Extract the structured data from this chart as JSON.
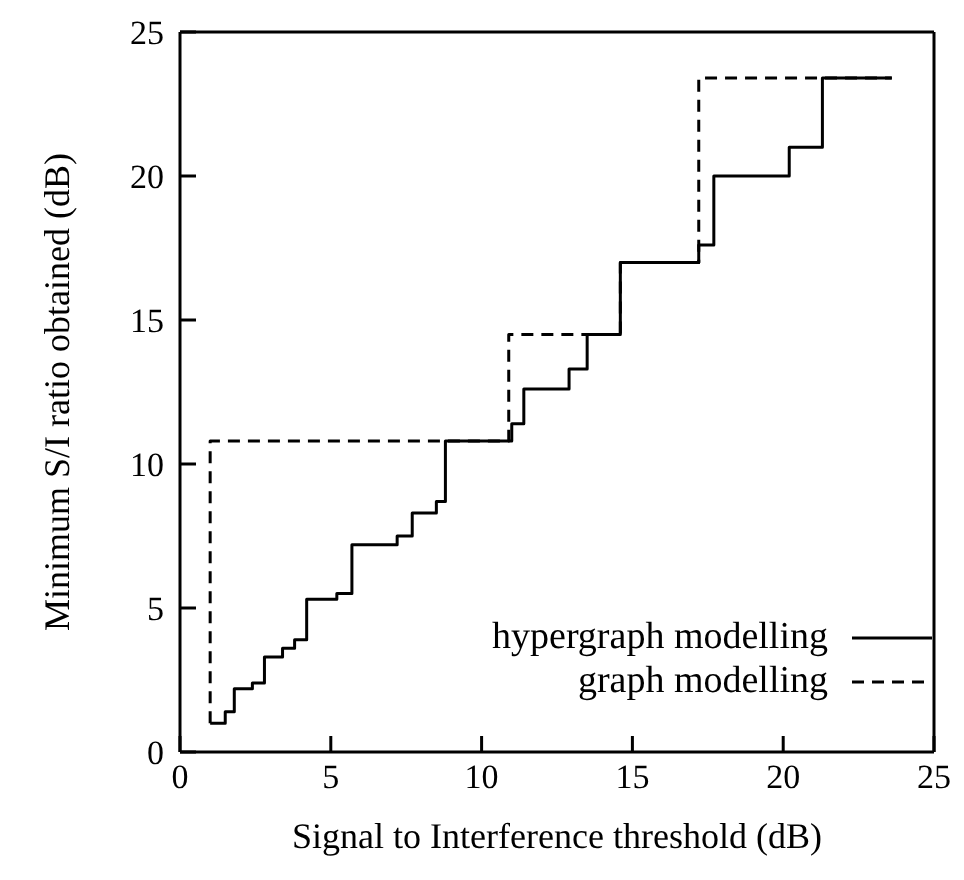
{
  "chart_data": {
    "type": "step",
    "xlabel": "Signal to Interference threshold  (dB)",
    "ylabel": "Minimum S/I ratio  obtained (dB)",
    "xlim": [
      0,
      25
    ],
    "xticks": [
      0,
      5,
      10,
      15,
      20,
      25
    ],
    "ylim": [
      0,
      25
    ],
    "yticks": [
      0,
      5,
      10,
      15,
      20,
      25
    ],
    "legend": "bottom right",
    "marker": "none",
    "series": [
      {
        "name": "hypergraph modelling",
        "color": "#000000",
        "line_style": "solid",
        "x": [
          1.0,
          1.5,
          1.8,
          2.4,
          2.8,
          3.4,
          3.8,
          4.2,
          5.2,
          5.7,
          7.2,
          7.7,
          8.5,
          8.8,
          11.0,
          11.4,
          12.9,
          13.5,
          14.6,
          17.2,
          17.7,
          20.2,
          21.3,
          23.6
        ],
        "values": [
          1.0,
          1.4,
          2.2,
          2.4,
          3.3,
          3.6,
          3.9,
          5.3,
          5.5,
          7.2,
          7.5,
          8.3,
          8.7,
          10.8,
          11.4,
          12.6,
          13.3,
          14.5,
          17.0,
          17.6,
          20.0,
          21.0,
          23.4,
          23.4
        ]
      },
      {
        "name": "graph modelling",
        "color": "#000000",
        "line_style": "dashed",
        "x": [
          1.0,
          1.0,
          10.9,
          14.6,
          17.2,
          23.6
        ],
        "values": [
          1.0,
          10.8,
          14.5,
          17.0,
          23.4,
          23.4
        ]
      }
    ]
  }
}
